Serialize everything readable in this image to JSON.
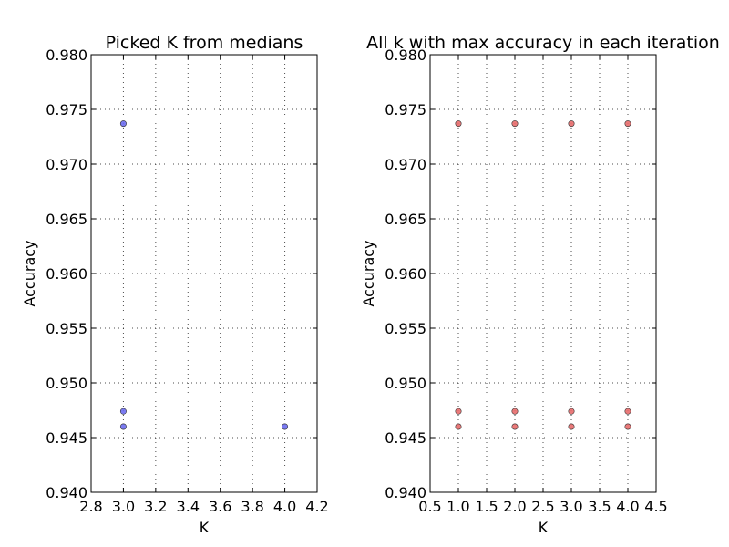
{
  "chart_data": [
    {
      "type": "scatter",
      "title": "Picked K from medians",
      "xlabel": "K",
      "ylabel": "Accuracy",
      "xlim": [
        2.8,
        4.2
      ],
      "ylim": [
        0.94,
        0.98
      ],
      "xticks": [
        "2.8",
        "3.0",
        "3.2",
        "3.4",
        "3.6",
        "3.8",
        "4.0",
        "4.2"
      ],
      "yticks": [
        "0.940",
        "0.945",
        "0.950",
        "0.955",
        "0.960",
        "0.965",
        "0.970",
        "0.975",
        "0.980"
      ],
      "grid": true,
      "marker_color": "#6d6df0",
      "points": [
        {
          "x": 3.0,
          "y": 0.9737
        },
        {
          "x": 3.0,
          "y": 0.9474
        },
        {
          "x": 3.0,
          "y": 0.946
        },
        {
          "x": 4.0,
          "y": 0.946
        }
      ]
    },
    {
      "type": "scatter",
      "title": "All k with max accuracy in each iteration",
      "xlabel": "K",
      "ylabel": "Accuracy",
      "xlim": [
        0.5,
        4.5
      ],
      "ylim": [
        0.94,
        0.98
      ],
      "xticks": [
        "0.5",
        "1.0",
        "1.5",
        "2.0",
        "2.5",
        "3.0",
        "3.5",
        "4.0",
        "4.5"
      ],
      "yticks": [
        "0.940",
        "0.945",
        "0.950",
        "0.955",
        "0.960",
        "0.965",
        "0.970",
        "0.975",
        "0.980"
      ],
      "grid": true,
      "marker_color": "#e86b6b",
      "points": [
        {
          "x": 1.0,
          "y": 0.9737
        },
        {
          "x": 2.0,
          "y": 0.9737
        },
        {
          "x": 3.0,
          "y": 0.9737
        },
        {
          "x": 4.0,
          "y": 0.9737
        },
        {
          "x": 1.0,
          "y": 0.9474
        },
        {
          "x": 2.0,
          "y": 0.9474
        },
        {
          "x": 3.0,
          "y": 0.9474
        },
        {
          "x": 4.0,
          "y": 0.9474
        },
        {
          "x": 1.0,
          "y": 0.946
        },
        {
          "x": 2.0,
          "y": 0.946
        },
        {
          "x": 3.0,
          "y": 0.946
        },
        {
          "x": 4.0,
          "y": 0.946
        }
      ]
    }
  ]
}
